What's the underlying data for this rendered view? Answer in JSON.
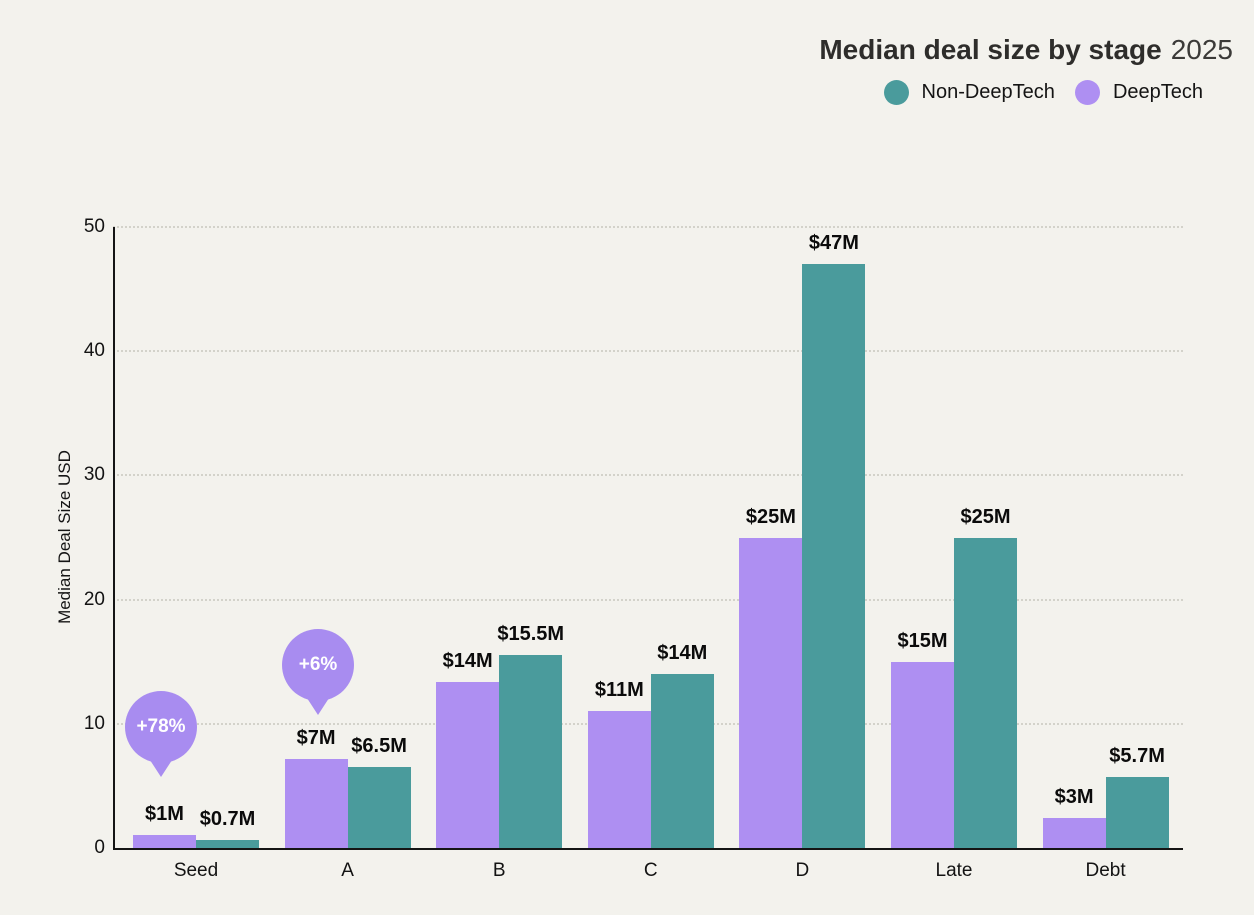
{
  "title": {
    "main": "Median deal size by stage",
    "year": "2025"
  },
  "legend": [
    {
      "label": "Non-DeepTech",
      "color": "#4a9b9c"
    },
    {
      "label": "DeepTech",
      "color": "#ae8ff2"
    }
  ],
  "colors": {
    "background": "#f3f2ed",
    "non_deeptech": "#4a9b9c",
    "deeptech": "#ae8ff2",
    "annotation_bubble": "#a88cf0",
    "grid": "#d3d2ca",
    "axis": "#151515",
    "title_text": "#2e2d2b"
  },
  "chart_data": {
    "type": "bar",
    "title": "Median deal size by stage 2025",
    "categories": [
      "Seed",
      "A",
      "B",
      "C",
      "D",
      "Late",
      "Debt"
    ],
    "series": [
      {
        "name": "DeepTech",
        "color": "#ae8ff2",
        "values": [
          1,
          7,
          14,
          11,
          25,
          15,
          3
        ],
        "labels": [
          "$1M",
          "$7M",
          "$14M",
          "$11M",
          "$25M",
          "$15M",
          "$3M"
        ],
        "plotted_values": [
          1.05,
          7.2,
          13.4,
          11,
          25,
          15,
          2.4
        ]
      },
      {
        "name": "Non-DeepTech",
        "color": "#4a9b9c",
        "values": [
          0.7,
          6.5,
          15.5,
          14,
          47,
          25,
          5.7
        ],
        "labels": [
          "$0.7M",
          "$6.5M",
          "$15.5M",
          "$14M",
          "$47M",
          "$25M",
          "$5.7M"
        ],
        "plotted_values": [
          0.65,
          6.5,
          15.5,
          14,
          47,
          25,
          5.7
        ]
      }
    ],
    "xlabel": "",
    "ylabel": "Median Deal Size USD",
    "yticks": [
      0,
      10,
      20,
      30,
      40,
      50
    ],
    "ylim": [
      0,
      50
    ],
    "grid": "horizontal-dotted",
    "legend_position": "top-right",
    "annotations": [
      {
        "text": "+78%",
        "category": "Seed",
        "series": "DeepTech"
      },
      {
        "text": "+6%",
        "category": "A",
        "series": "DeepTech"
      }
    ]
  }
}
